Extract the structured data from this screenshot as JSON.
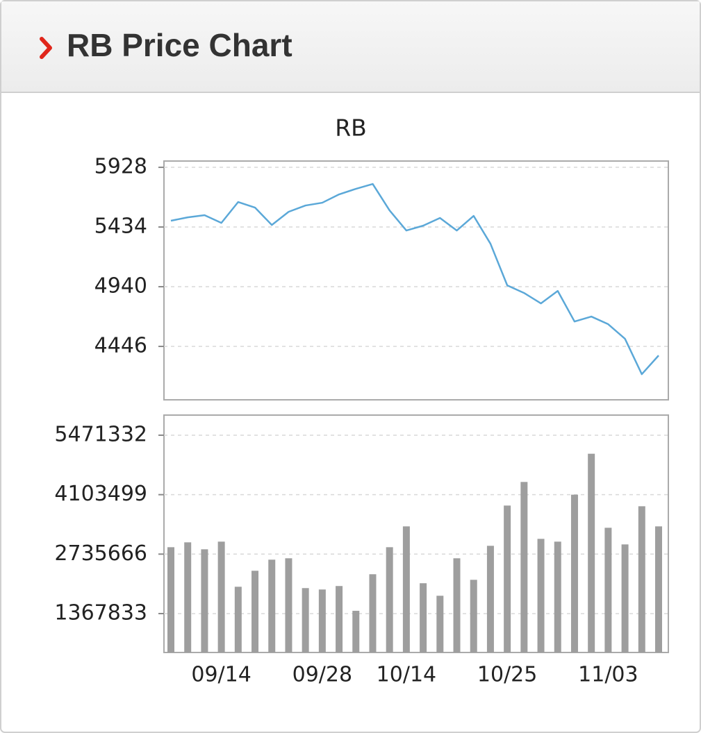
{
  "header": {
    "title": "RB Price Chart"
  },
  "chart_data": [
    {
      "type": "line",
      "title": "RB",
      "color": "#5ba8d8",
      "values": [
        5486,
        5514,
        5532,
        5468,
        5641,
        5595,
        5451,
        5560,
        5612,
        5635,
        5704,
        5750,
        5790,
        5572,
        5405,
        5445,
        5509,
        5405,
        5526,
        5296,
        4951,
        4888,
        4802,
        4905,
        4652,
        4693,
        4630,
        4509,
        4216,
        4371
      ],
      "ylim": [
        4004,
        5980
      ],
      "yticks": [
        4446,
        4940,
        5434,
        5928
      ],
      "grid": true
    },
    {
      "type": "bar",
      "color": "#9e9e9e",
      "categories": [
        null,
        null,
        null,
        "09/14",
        null,
        null,
        null,
        null,
        null,
        "09/28",
        null,
        null,
        null,
        null,
        "10/14",
        null,
        null,
        null,
        null,
        null,
        "10/25",
        null,
        null,
        null,
        null,
        null,
        "11/03",
        null,
        null,
        null
      ],
      "values": [
        2895000,
        3007000,
        2847000,
        3023000,
        1985000,
        2353000,
        2608000,
        2640000,
        1954000,
        1922000,
        2002000,
        1432000,
        2273000,
        2895000,
        3374000,
        2066000,
        1778000,
        2640000,
        2145000,
        2927000,
        3853000,
        4396000,
        3087000,
        3023000,
        4103000,
        5045000,
        3342000,
        2959000,
        3837000,
        3374000
      ],
      "ylim": [
        473000,
        5934000
      ],
      "yticks": [
        1367833,
        2735666,
        4103499,
        5471332
      ],
      "grid": true
    }
  ]
}
